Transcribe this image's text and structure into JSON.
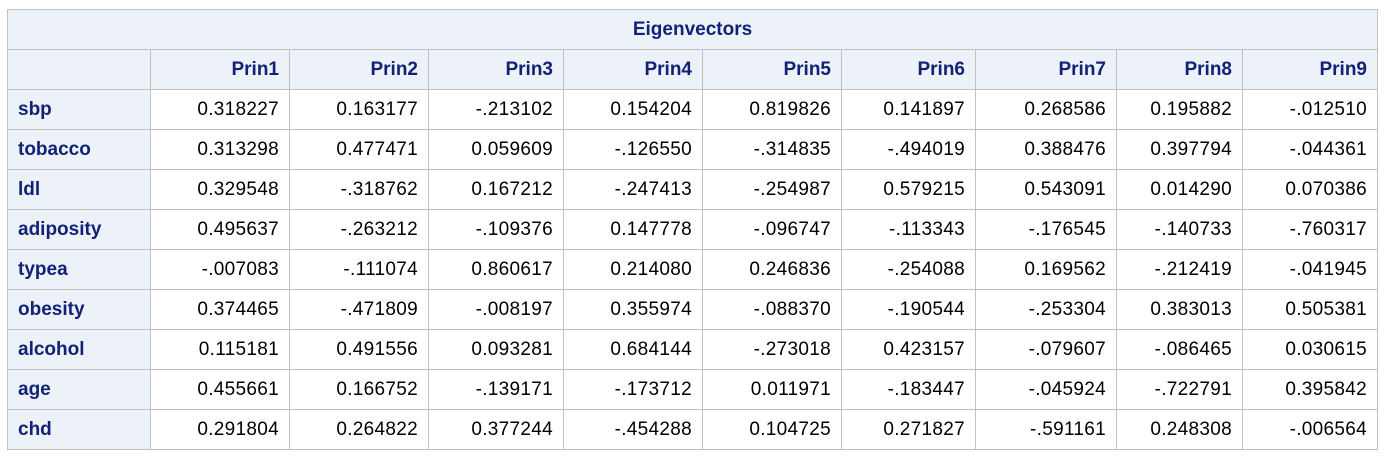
{
  "table": {
    "title": "Eigenvectors",
    "columns": [
      "Prin1",
      "Prin2",
      "Prin3",
      "Prin4",
      "Prin5",
      "Prin6",
      "Prin7",
      "Prin8",
      "Prin9"
    ],
    "rows": [
      {
        "label": "sbp",
        "values": [
          "0.318227",
          "0.163177",
          "-.213102",
          "0.154204",
          "0.819826",
          "0.141897",
          "0.268586",
          "0.195882",
          "-.012510"
        ]
      },
      {
        "label": "tobacco",
        "values": [
          "0.313298",
          "0.477471",
          "0.059609",
          "-.126550",
          "-.314835",
          "-.494019",
          "0.388476",
          "0.397794",
          "-.044361"
        ]
      },
      {
        "label": "ldl",
        "values": [
          "0.329548",
          "-.318762",
          "0.167212",
          "-.247413",
          "-.254987",
          "0.579215",
          "0.543091",
          "0.014290",
          "0.070386"
        ]
      },
      {
        "label": "adiposity",
        "values": [
          "0.495637",
          "-.263212",
          "-.109376",
          "0.147778",
          "-.096747",
          "-.113343",
          "-.176545",
          "-.140733",
          "-.760317"
        ]
      },
      {
        "label": "typea",
        "values": [
          "-.007083",
          "-.111074",
          "0.860617",
          "0.214080",
          "0.246836",
          "-.254088",
          "0.169562",
          "-.212419",
          "-.041945"
        ]
      },
      {
        "label": "obesity",
        "values": [
          "0.374465",
          "-.471809",
          "-.008197",
          "0.355974",
          "-.088370",
          "-.190544",
          "-.253304",
          "0.383013",
          "0.505381"
        ]
      },
      {
        "label": "alcohol",
        "values": [
          "0.115181",
          "0.491556",
          "0.093281",
          "0.684144",
          "-.273018",
          "0.423157",
          "-.079607",
          "-.086465",
          "0.030615"
        ]
      },
      {
        "label": "age",
        "values": [
          "0.455661",
          "0.166752",
          "-.139171",
          "-.173712",
          "0.011971",
          "-.183447",
          "-.045924",
          "-.722791",
          "0.395842"
        ]
      },
      {
        "label": "chd",
        "values": [
          "0.291804",
          "0.264822",
          "0.377244",
          "-.454288",
          "0.104725",
          "0.271827",
          "-.591161",
          "0.248308",
          "-.006564"
        ]
      }
    ]
  },
  "colors": {
    "header_bg": "#edf2f9",
    "header_text": "#112277",
    "border": "#c1c1c1",
    "cell_bg": "#ffffff"
  }
}
